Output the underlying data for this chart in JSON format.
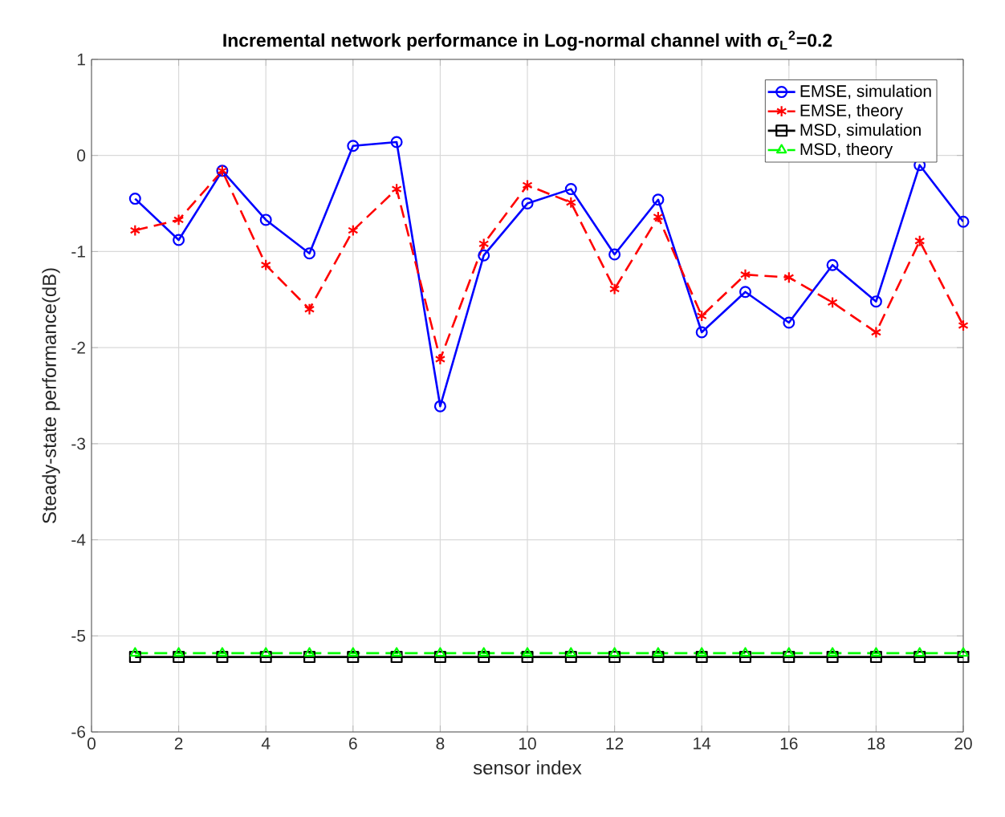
{
  "chart_data": {
    "type": "line",
    "title": "Incremental network performance in Log-normal channel with σ$_{L}$$^{2}$=0.2",
    "xlabel": "sensor index",
    "ylabel": "Steady-state performance(dB)",
    "x": [
      1,
      2,
      3,
      4,
      5,
      6,
      7,
      8,
      9,
      10,
      11,
      12,
      13,
      14,
      15,
      16,
      17,
      18,
      19,
      20
    ],
    "xlim": [
      0,
      20
    ],
    "xticks": [
      0,
      2,
      4,
      6,
      8,
      10,
      12,
      14,
      16,
      18,
      20
    ],
    "ylim": [
      -6,
      1
    ],
    "yticks": [
      -6,
      -5,
      -4,
      -3,
      -2,
      -1,
      0,
      1
    ],
    "grid": true,
    "legend": "top right",
    "series": [
      {
        "name": "EMSE, simulation",
        "color": "#0000ff",
        "marker": "circle",
        "line_style": "solid",
        "values": [
          -0.45,
          -0.88,
          -0.16,
          -0.67,
          -1.02,
          0.1,
          0.14,
          -2.61,
          -1.04,
          -0.5,
          -0.35,
          -1.03,
          -0.46,
          -1.84,
          -1.42,
          -1.74,
          -1.14,
          -1.52,
          -0.1,
          -0.69
        ]
      },
      {
        "name": "EMSE, theory",
        "color": "#ff0000",
        "marker": "cross",
        "line_style": "dashed",
        "values": [
          -0.78,
          -0.67,
          -0.16,
          -1.14,
          -1.6,
          -0.78,
          -0.35,
          -2.12,
          -0.92,
          -0.31,
          -0.49,
          -1.39,
          -0.64,
          -1.67,
          -1.24,
          -1.27,
          -1.53,
          -1.84,
          -0.89,
          -1.77
        ]
      },
      {
        "name": "MSD, simulation",
        "color": "#000000",
        "marker": "square",
        "line_style": "solid",
        "values": [
          -5.22,
          -5.22,
          -5.22,
          -5.22,
          -5.22,
          -5.22,
          -5.22,
          -5.22,
          -5.22,
          -5.22,
          -5.22,
          -5.22,
          -5.22,
          -5.22,
          -5.22,
          -5.22,
          -5.22,
          -5.22,
          -5.22,
          -5.22
        ]
      },
      {
        "name": "MSD, theory",
        "color": "#00ff00",
        "marker": "triangle",
        "line_style": "dashed",
        "values": [
          -5.18,
          -5.18,
          -5.18,
          -5.18,
          -5.18,
          -5.18,
          -5.18,
          -5.18,
          -5.18,
          -5.18,
          -5.18,
          -5.18,
          -5.18,
          -5.18,
          -5.18,
          -5.18,
          -5.18,
          -5.18,
          -5.18,
          -5.18
        ]
      }
    ]
  }
}
